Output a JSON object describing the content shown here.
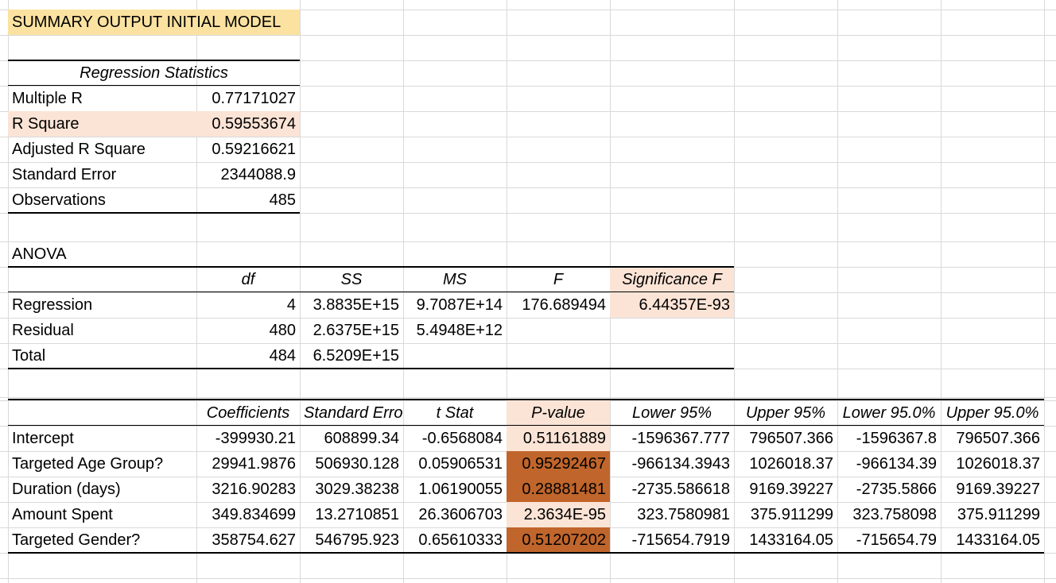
{
  "colors": {
    "gridline": "#d9d9d9",
    "title_fill": "#fbe2a0",
    "light_highlight": "#fbe4d6",
    "dark_highlight": "#c0652b",
    "text": "#000000"
  },
  "title": "SUMMARY OUTPUT INITIAL MODEL",
  "regression_stats": {
    "header": "Regression Statistics",
    "rows": [
      {
        "label": "Multiple R",
        "value": "0.77171027"
      },
      {
        "label": "R Square",
        "value": "0.59553674"
      },
      {
        "label": "Adjusted R Square",
        "value": "0.59216621"
      },
      {
        "label": "Standard Error",
        "value": "2344088.9"
      },
      {
        "label": "Observations",
        "value": "485"
      }
    ]
  },
  "anova": {
    "label": "ANOVA",
    "headers": [
      "",
      "df",
      "SS",
      "MS",
      "F",
      "Significance F"
    ],
    "rows": [
      [
        "Regression",
        "4",
        "3.8835E+15",
        "9.7087E+14",
        "176.689494",
        "6.44357E-93"
      ],
      [
        "Residual",
        "480",
        "2.6375E+15",
        "5.4948E+12",
        "",
        ""
      ],
      [
        "Total",
        "484",
        "6.5209E+15",
        "",
        "",
        ""
      ]
    ]
  },
  "coefficients": {
    "headers": [
      "",
      "Coefficients",
      "Standard Error",
      "t Stat",
      "P-value",
      "Lower 95%",
      "Upper 95%",
      "Lower 95.0%",
      "Upper 95.0%"
    ],
    "rows": [
      [
        "Intercept",
        "-399930.21",
        "608899.34",
        "-0.6568084",
        "0.51161889",
        "-1596367.777",
        "796507.366",
        "-1596367.8",
        "796507.366"
      ],
      [
        "Targeted Age Group?",
        "29941.9876",
        "506930.128",
        "0.05906531",
        "0.95292467",
        "-966134.3943",
        "1026018.37",
        "-966134.39",
        "1026018.37"
      ],
      [
        "Duration (days)",
        "3216.90283",
        "3029.38238",
        "1.06190055",
        "0.28881481",
        "-2735.586618",
        "9169.39227",
        "-2735.5866",
        "9169.39227"
      ],
      [
        "Amount Spent",
        "349.834699",
        "13.2710851",
        "26.3606703",
        "2.3634E-95",
        "323.7580981",
        "375.911299",
        "323.758098",
        "375.911299"
      ],
      [
        "Targeted Gender?",
        "358754.627",
        "546795.923",
        "0.65610333",
        "0.51207202",
        "-715654.7919",
        "1433164.05",
        "-715654.79",
        "1433164.05"
      ]
    ]
  }
}
